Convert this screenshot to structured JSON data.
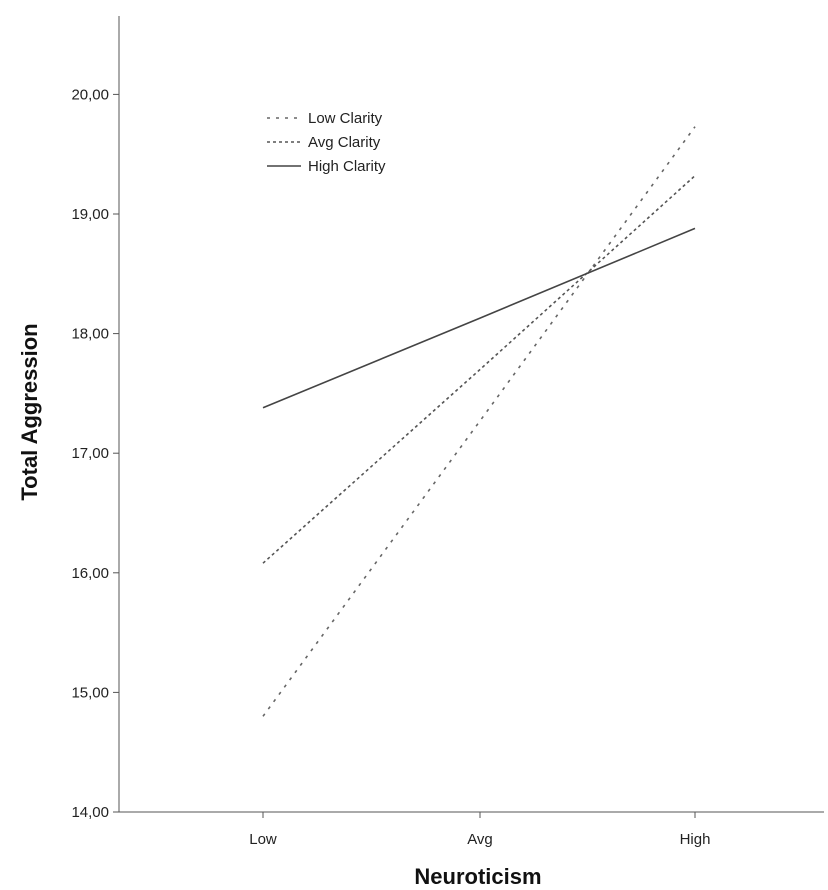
{
  "chart_data": {
    "type": "line",
    "title": "",
    "xlabel": "Neuroticism",
    "ylabel": "Total Aggression",
    "categories": [
      "Low",
      "Avg",
      "High"
    ],
    "ylim": [
      14,
      20.6
    ],
    "yticks": [
      14,
      15,
      16,
      17,
      18,
      19,
      20
    ],
    "ytick_labels": [
      "14,00",
      "15,00",
      "16,00",
      "17,00",
      "18,00",
      "19,00",
      "20,00"
    ],
    "grid": false,
    "legend_position": "top-left",
    "series": [
      {
        "name": "Low Clarity",
        "values": [
          14.8,
          17.27,
          19.73
        ],
        "style": "dashed-sparse",
        "color": "#666666"
      },
      {
        "name": "Avg Clarity",
        "values": [
          16.08,
          17.7,
          19.32
        ],
        "style": "dashed-dense",
        "color": "#555555"
      },
      {
        "name": "High Clarity",
        "values": [
          17.38,
          18.13,
          18.88
        ],
        "style": "solid",
        "color": "#444444"
      }
    ]
  }
}
